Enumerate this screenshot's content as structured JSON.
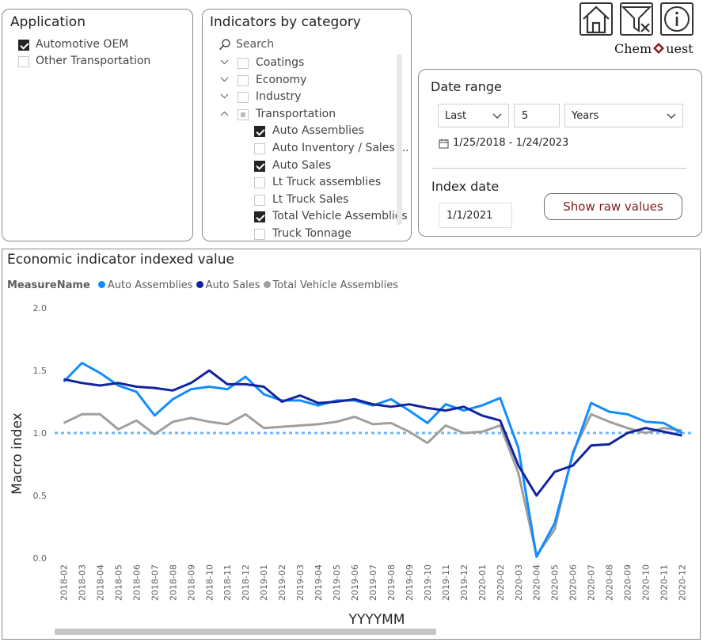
{
  "application": {
    "title": "Application",
    "items": [
      {
        "label": "Automotive OEM",
        "checked": true
      },
      {
        "label": "Other Transportation",
        "checked": false
      }
    ]
  },
  "indicators": {
    "title": "Indicators by category",
    "search_placeholder": "Search",
    "items": [
      {
        "label": "Coatings",
        "level": 0,
        "state": "unchecked",
        "expand": "collapsed"
      },
      {
        "label": "Economy",
        "level": 0,
        "state": "unchecked",
        "expand": "collapsed"
      },
      {
        "label": "Industry",
        "level": 0,
        "state": "unchecked",
        "expand": "collapsed"
      },
      {
        "label": "Transportation",
        "level": 0,
        "state": "partial",
        "expand": "expanded"
      },
      {
        "label": "Auto Assemblies",
        "level": 1,
        "state": "checked"
      },
      {
        "label": "Auto Inventory / Sales ...",
        "level": 1,
        "state": "unchecked"
      },
      {
        "label": "Auto Sales",
        "level": 1,
        "state": "checked"
      },
      {
        "label": "Lt Truck assemblies",
        "level": 1,
        "state": "unchecked"
      },
      {
        "label": "Lt Truck Sales",
        "level": 1,
        "state": "unchecked"
      },
      {
        "label": "Total Vehicle Assemblies",
        "level": 1,
        "state": "checked"
      },
      {
        "label": "Truck Tonnage",
        "level": 1,
        "state": "unchecked"
      }
    ]
  },
  "toolbar": {
    "home_icon": "home-icon",
    "clear_filters_icon": "clear-filter-icon",
    "info_icon": "info-icon",
    "logo_text_left": "Chem",
    "logo_text_right": "uest"
  },
  "date_range": {
    "title": "Date range",
    "mode": "Last",
    "count": "5",
    "unit": "Years",
    "range_text": "1/25/2018 - 1/24/2023",
    "index_title": "Index date",
    "index_value": "1/1/2021",
    "raw_button": "Show raw values"
  },
  "colors": {
    "auto_assemblies": "#118dff",
    "auto_sales": "#12239e",
    "total_vehicle": "#a19f9d",
    "reference": "#6fb6f5",
    "raw_button_text": "#7d1a1a"
  },
  "chart_title": "Economic indicator indexed value",
  "chart_data": {
    "type": "line",
    "title": "Economic indicator indexed value",
    "xlabel": "YYYYMM",
    "ylabel": "Macro index",
    "legend_title": "MeasureName",
    "legend_position": "top-left",
    "ylim": [
      0,
      2
    ],
    "yticks": [
      "0.0",
      "0.5",
      "1.0",
      "1.5",
      "2.0"
    ],
    "reference_line": 1.0,
    "categories": [
      "2018-02",
      "2018-03",
      "2018-04",
      "2018-05",
      "2018-06",
      "2018-07",
      "2018-08",
      "2018-09",
      "2018-10",
      "2018-11",
      "2018-12",
      "2019-01",
      "2019-02",
      "2019-03",
      "2019-04",
      "2019-05",
      "2019-06",
      "2019-07",
      "2019-08",
      "2019-09",
      "2019-10",
      "2019-11",
      "2019-12",
      "2020-01",
      "2020-02",
      "2020-03",
      "2020-04",
      "2020-05",
      "2020-06",
      "2020-07",
      "2020-08",
      "2020-09",
      "2020-10",
      "2020-11",
      "2020-12"
    ],
    "series": [
      {
        "name": "Auto Assemblies",
        "values": [
          1.41,
          1.56,
          1.48,
          1.38,
          1.33,
          1.14,
          1.27,
          1.35,
          1.37,
          1.35,
          1.45,
          1.31,
          1.26,
          1.26,
          1.22,
          1.26,
          1.26,
          1.22,
          1.27,
          1.18,
          1.08,
          1.23,
          1.18,
          1.22,
          1.28,
          0.88,
          0.01,
          0.28,
          0.83,
          1.24,
          1.17,
          1.15,
          1.09,
          1.08,
          1.0
        ]
      },
      {
        "name": "Auto Sales",
        "values": [
          1.43,
          1.4,
          1.38,
          1.4,
          1.37,
          1.36,
          1.34,
          1.4,
          1.5,
          1.39,
          1.39,
          1.37,
          1.25,
          1.3,
          1.24,
          1.25,
          1.27,
          1.23,
          1.21,
          1.23,
          1.2,
          1.18,
          1.21,
          1.14,
          1.1,
          0.74,
          0.5,
          0.69,
          0.74,
          0.9,
          0.91,
          1.0,
          1.04,
          1.01,
          0.98
        ]
      },
      {
        "name": "Total Vehicle Assemblies",
        "values": [
          1.08,
          1.15,
          1.15,
          1.03,
          1.1,
          0.99,
          1.09,
          1.12,
          1.09,
          1.07,
          1.15,
          1.04,
          1.05,
          1.06,
          1.07,
          1.09,
          1.13,
          1.07,
          1.08,
          1.01,
          0.92,
          1.06,
          1.0,
          1.01,
          1.06,
          0.68,
          0.02,
          0.23,
          0.85,
          1.15,
          1.09,
          1.04,
          1.0,
          1.04,
          1.02
        ]
      }
    ]
  }
}
